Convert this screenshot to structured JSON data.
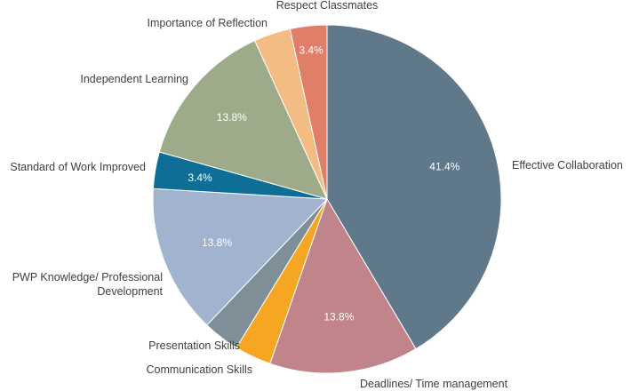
{
  "chart_data": {
    "type": "pie",
    "title": "",
    "slices": [
      {
        "label": "Effective Collaboration",
        "value": 41.4,
        "display": "41.4%",
        "color": "#60798a"
      },
      {
        "label": "Deadlines/ Time management",
        "value": 13.8,
        "display": "13.8%",
        "color": "#c0848a"
      },
      {
        "label": "Communication Skills",
        "value": 3.4,
        "display": "",
        "color": "#f5a623"
      },
      {
        "label": "Presentation Skills",
        "value": 3.4,
        "display": "",
        "color": "#7e8f98"
      },
      {
        "label": "PWP Knowledge/ Professional Development",
        "label_lines": [
          "PWP Knowledge/ Professional",
          "Development"
        ],
        "value": 13.8,
        "display": "13.8%",
        "color": "#a2b3cf"
      },
      {
        "label": "Standard of Work Improved",
        "value": 3.4,
        "display": "3.4%",
        "color": "#0e6e96"
      },
      {
        "label": "Independent Learning",
        "value": 13.8,
        "display": "13.8%",
        "color": "#9dab8a"
      },
      {
        "label": "Importance of Reflection",
        "value": 3.4,
        "display": "",
        "color": "#f2bc82"
      },
      {
        "label": "Respect Classmates",
        "value": 3.4,
        "display": "3.4%",
        "color": "#e07e68"
      }
    ]
  }
}
